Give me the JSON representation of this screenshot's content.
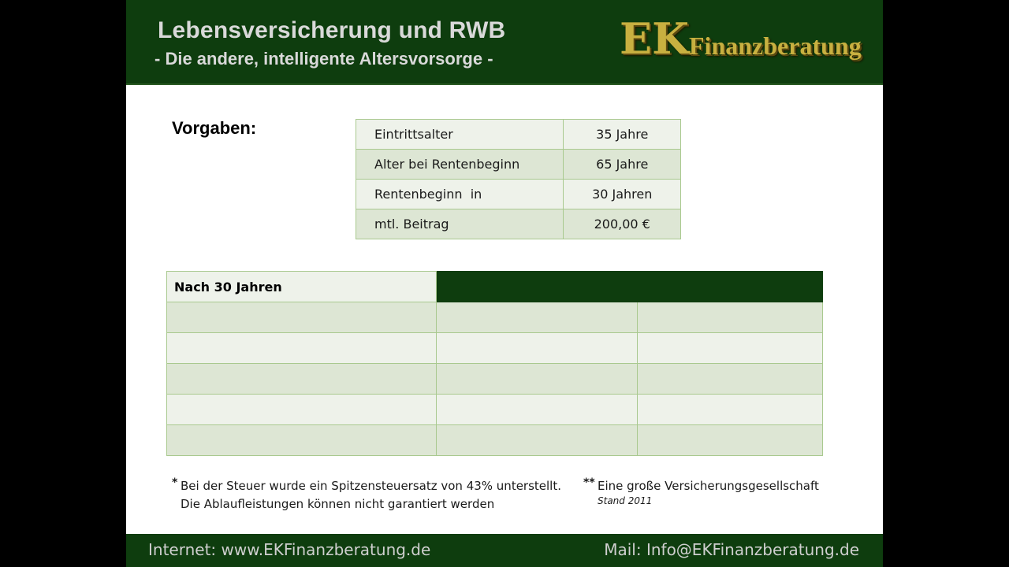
{
  "header": {
    "title": "Lebensversicherung und RWB",
    "subtitle": "- Die andere, intelligente Altersvorsorge -",
    "logo": {
      "ek": "EK",
      "name": "Finanzberatung"
    }
  },
  "vorgaben": {
    "label": "Vorgaben:",
    "rows": [
      {
        "label": "Eintrittsalter",
        "value": "35 Jahre"
      },
      {
        "label": "Alter bei Rentenbeginn",
        "value": "65 Jahre"
      },
      {
        "label": "Rentenbeginn  in",
        "value": "30 Jahren"
      },
      {
        "label": "mtl. Beitrag",
        "value": "200,00 €"
      }
    ]
  },
  "results": {
    "header_label": "Nach 30 Jahren"
  },
  "footnotes": {
    "left_marker": "*",
    "left_line1": "Bei der Steuer wurde ein Spitzensteuersatz von 43% unterstellt.",
    "left_line2": "Die Ablaufleistungen können nicht garantiert werden",
    "right_marker": "**",
    "right_line1": "Eine große Versicherungsgesellschaft",
    "right_line2": "Stand 2011"
  },
  "footer": {
    "internet": "Internet: www.EKFinanzberatung.de",
    "mail": "Mail: Info@EKFinanzberatung.de"
  },
  "colors": {
    "brand_green": "#0e3d0e",
    "logo_gold": "#c8b040",
    "row_light": "#eef2ea",
    "row_dark": "#dde6d4",
    "cell_border": "#a9c98f"
  }
}
